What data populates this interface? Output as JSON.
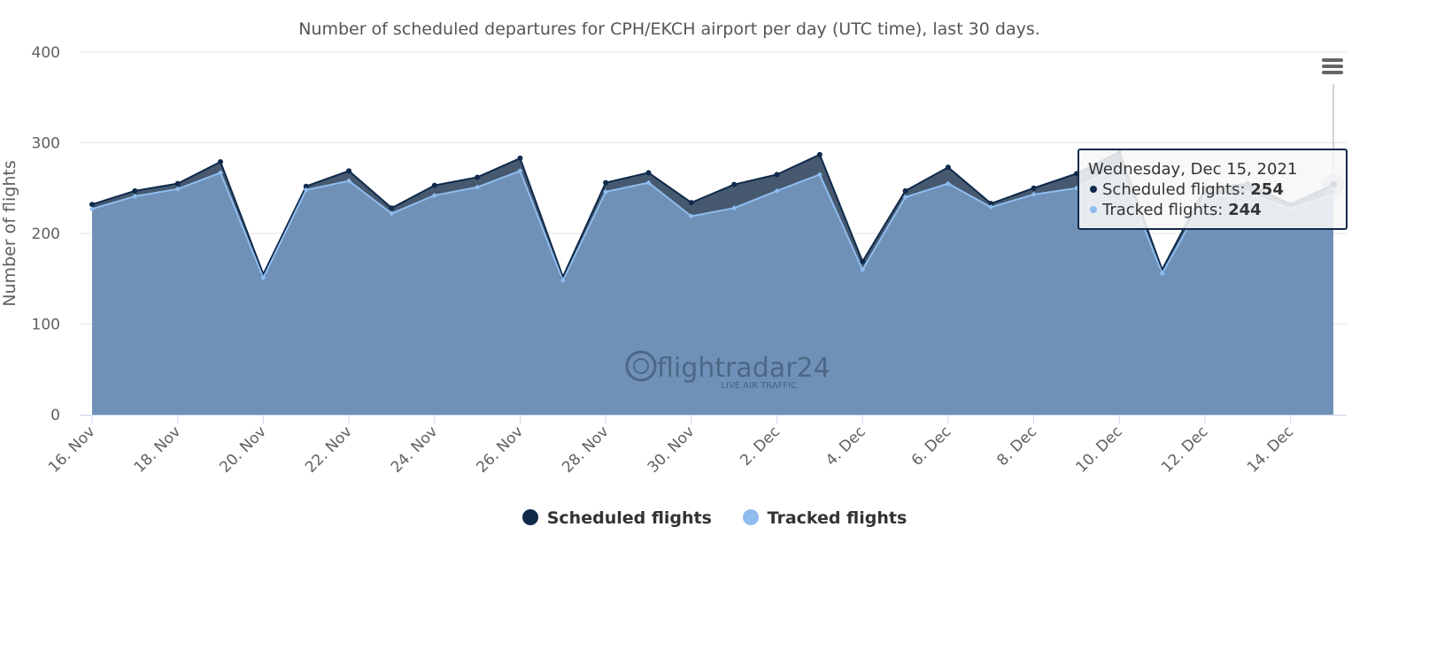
{
  "chart_data": {
    "type": "area",
    "title": "Number of scheduled departures for CPH/EKCH airport per day (UTC time), last 30 days.",
    "xlabel": "",
    "ylabel": "Number of flights",
    "ylim": [
      0,
      400
    ],
    "yticks": [
      "0",
      "100",
      "200",
      "300",
      "400"
    ],
    "grid": true,
    "x": [
      "16. Nov",
      "17. Nov",
      "18. Nov",
      "19. Nov",
      "20. Nov",
      "21. Nov",
      "22. Nov",
      "23. Nov",
      "24. Nov",
      "25. Nov",
      "26. Nov",
      "27. Nov",
      "28. Nov",
      "29. Nov",
      "30. Nov",
      "1. Dec",
      "2. Dec",
      "3. Dec",
      "4. Dec",
      "5. Dec",
      "6. Dec",
      "7. Dec",
      "8. Dec",
      "9. Dec",
      "10. Dec",
      "11. Dec",
      "12. Dec",
      "13. Dec",
      "14. Dec",
      "15. Dec"
    ],
    "xtick_labels": [
      "16. Nov",
      "18. Nov",
      "20. Nov",
      "22. Nov",
      "24. Nov",
      "26. Nov",
      "28. Nov",
      "30. Nov",
      "2. Dec",
      "4. Dec",
      "6. Dec",
      "8. Dec",
      "10. Dec",
      "12. Dec",
      "14. Dec"
    ],
    "series": [
      {
        "name": "Scheduled flights",
        "color": "#0f2a4a",
        "values": [
          232,
          247,
          255,
          279,
          155,
          252,
          269,
          228,
          253,
          262,
          283,
          152,
          256,
          267,
          234,
          254,
          265,
          287,
          169,
          247,
          273,
          233,
          250,
          266,
          290,
          160,
          250,
          255,
          232,
          254
        ]
      },
      {
        "name": "Tracked flights",
        "color": "#8fbcef",
        "values": [
          227,
          241,
          249,
          267,
          151,
          248,
          258,
          222,
          242,
          251,
          269,
          148,
          246,
          256,
          219,
          228,
          247,
          265,
          160,
          240,
          255,
          229,
          243,
          250,
          275,
          156,
          240,
          245,
          227,
          244
        ]
      }
    ],
    "legend_position": "bottom-center"
  },
  "tooltip": {
    "date": "Wednesday, Dec 15, 2021",
    "rows": [
      {
        "label": "Scheduled flights: ",
        "value": "254"
      },
      {
        "label": "Tracked flights: ",
        "value": "244"
      }
    ]
  },
  "watermark": {
    "brand": "flightradar24",
    "tagline": "LIVE AIR TRAFFIC"
  },
  "menu_icon": "hamburger-menu-icon"
}
